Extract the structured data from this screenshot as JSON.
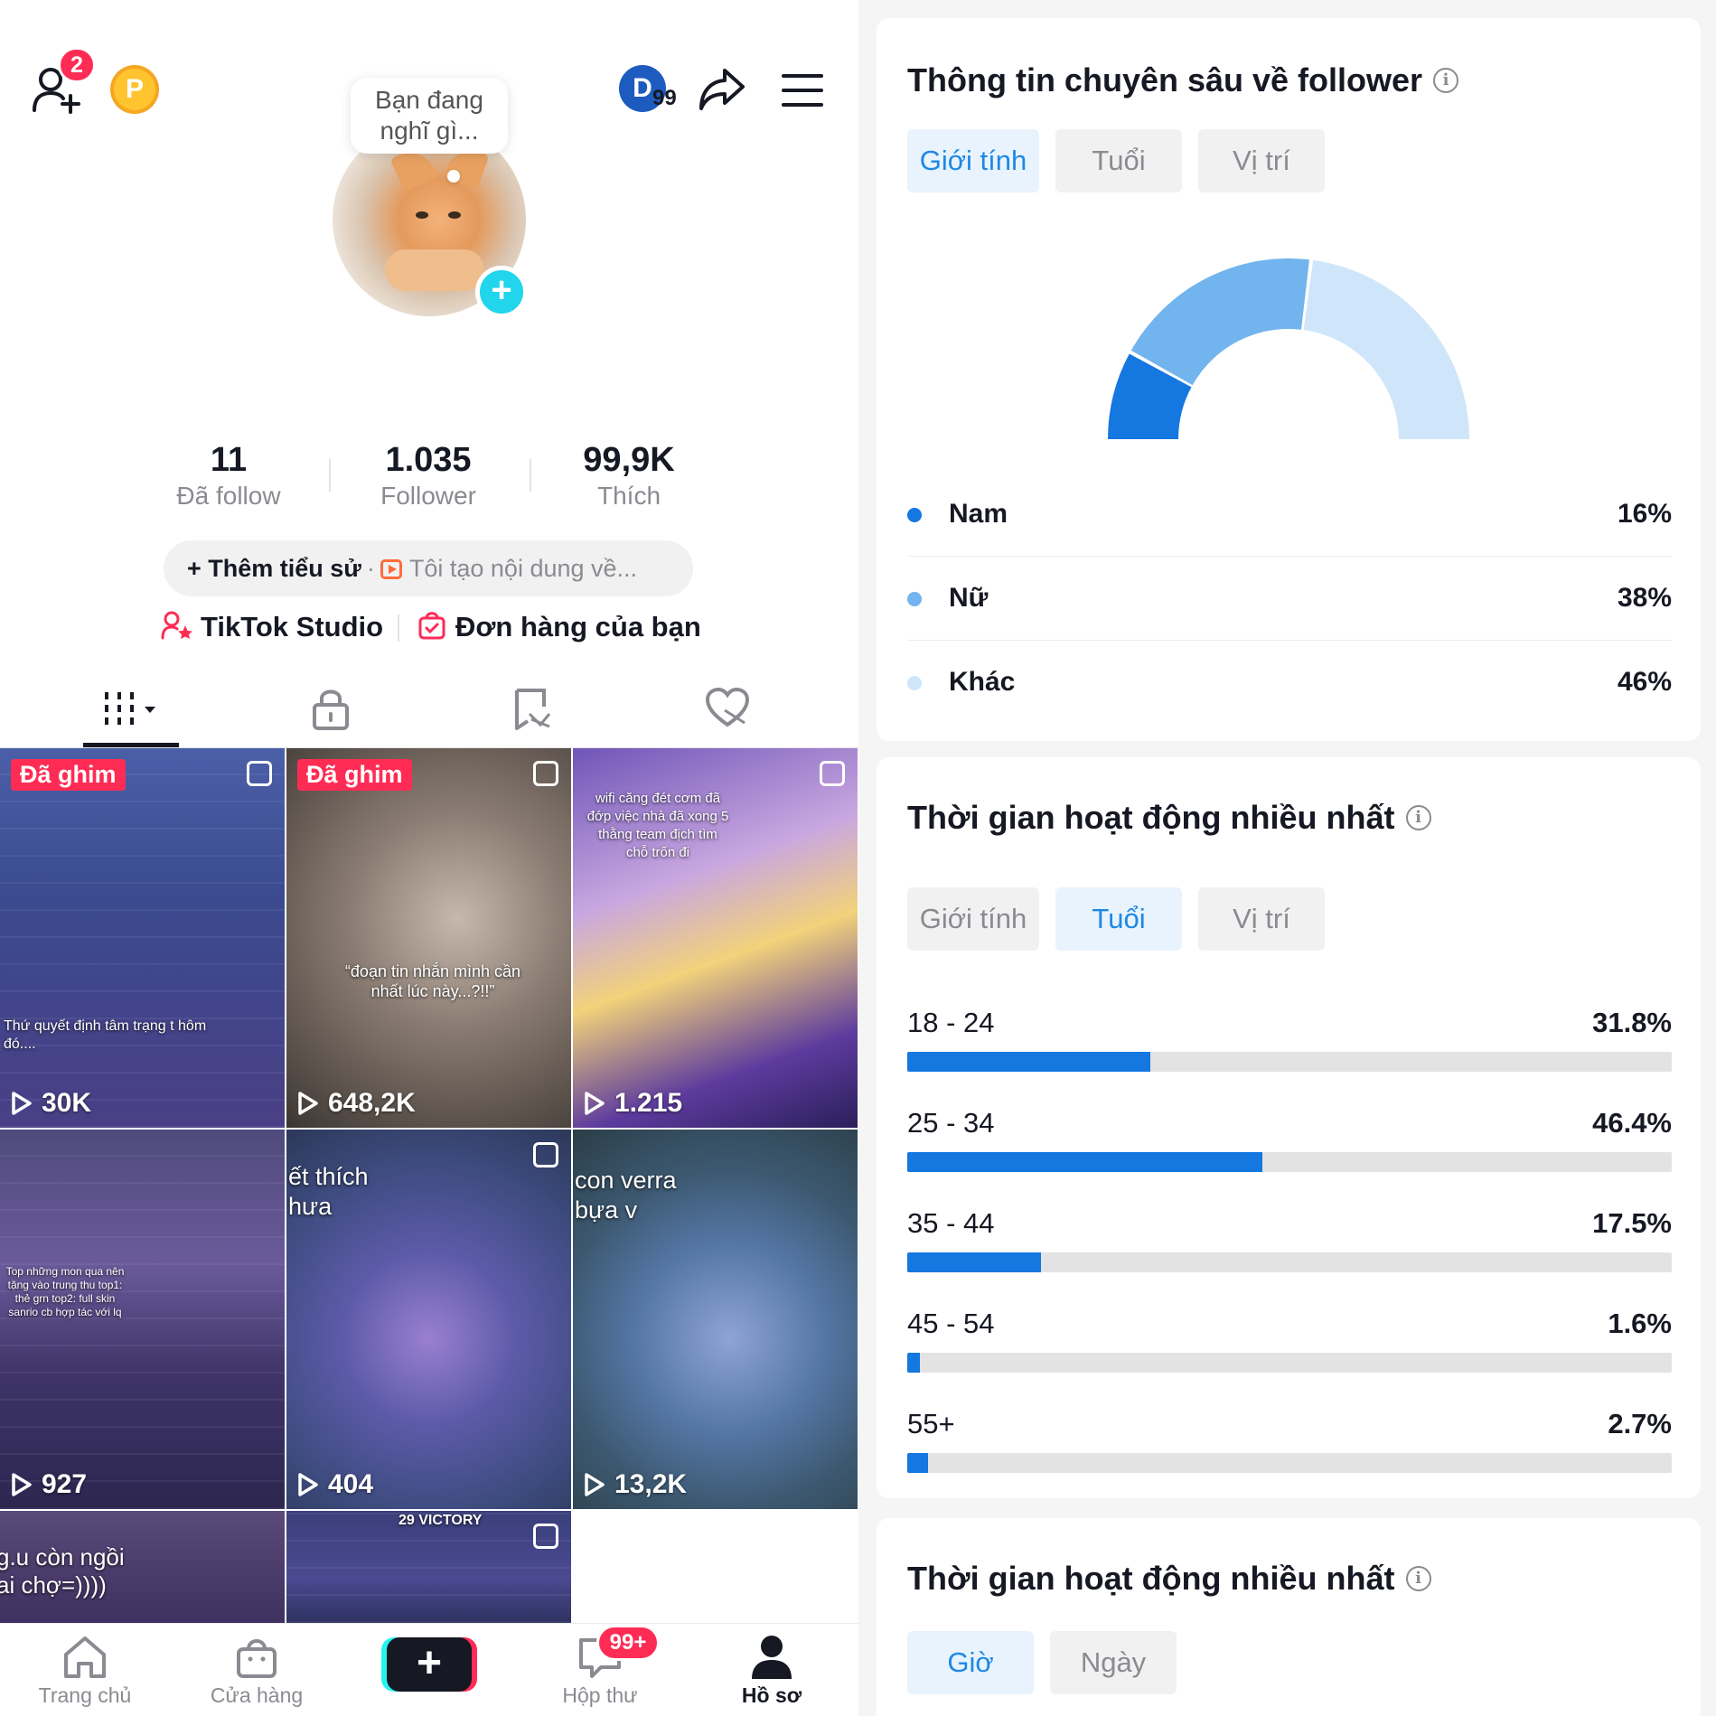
{
  "profile": {
    "friend_badge": "2",
    "coin_label": "P",
    "avatar_letter": "D",
    "avatar_count": "99",
    "bubble_text_1": "Bạn đang",
    "bubble_text_2": "nghĩ gì...",
    "stats": [
      {
        "value": "11",
        "label": "Đã follow"
      },
      {
        "value": "1.035",
        "label": "Follower"
      },
      {
        "value": "99,9K",
        "label": "Thích"
      }
    ],
    "bio_add": "Thêm tiểu sử",
    "bio_dot": "·",
    "bio_desc": "Tôi tạo nội dung về...",
    "studio_link": "TikTok Studio",
    "orders_link": "Đơn hàng của bạn"
  },
  "tiles": [
    {
      "pinned": "Đã ghim",
      "views": "30K",
      "caption": "Thứ quyết định tâm trạng t hôm đó...."
    },
    {
      "pinned": "Đã ghim",
      "views": "648,2K",
      "caption": "“đoạn tin nhắn mình cần nhất lúc này...?!!”"
    },
    {
      "views": "1.215",
      "caption": "wifi căng đét cơm đã đớp việc nhà đã xong 5 thằng team địch tìm chỗ trốn đi"
    },
    {
      "views": "927",
      "caption": "Top những mon qua nên tặng vào trung thu top1: thẻ grn top2: full skin sanrio cb hợp tác với lq"
    },
    {
      "views": "404",
      "caption": "ết thích hưa"
    },
    {
      "views": "13,2K",
      "caption": "con verra bựa v"
    },
    {
      "views": "",
      "caption": "g.u còn ngồi ai chợ=))))"
    },
    {
      "views": "",
      "caption": "29 VICTORY"
    }
  ],
  "nav": {
    "home": "Trang chủ",
    "shop": "Cửa hàng",
    "create": "+",
    "inbox": "Hộp thư",
    "inbox_badge": "99+",
    "profile": "Hồ sơ"
  },
  "insights": {
    "follower_card": {
      "title": "Thông tin chuyên sâu về follower",
      "info": "i",
      "tabs": [
        "Giới tính",
        "Tuổi",
        "Vị trí"
      ],
      "active_tab": 0,
      "gender": [
        {
          "name": "Nam",
          "pct": "16%",
          "value": 16,
          "color": "#1577e0"
        },
        {
          "name": "Nữ",
          "pct": "38%",
          "value": 38,
          "color": "#72b4ee"
        },
        {
          "name": "Khác",
          "pct": "46%",
          "value": 46,
          "color": "#cfe6fa"
        }
      ]
    },
    "activity_card": {
      "title": "Thời gian hoạt động nhiều nhất",
      "info": "i",
      "tabs": [
        "Giới tính",
        "Tuổi",
        "Vị trí"
      ],
      "active_tab": 1,
      "ages": [
        {
          "label": "18 - 24",
          "pct": "31.8%",
          "value": 31.8
        },
        {
          "label": "25 - 34",
          "pct": "46.4%",
          "value": 46.4
        },
        {
          "label": "35 - 44",
          "pct": "17.5%",
          "value": 17.5
        },
        {
          "label": "45 - 54",
          "pct": "1.6%",
          "value": 1.6
        },
        {
          "label": "55+",
          "pct": "2.7%",
          "value": 2.7
        }
      ]
    },
    "time_card": {
      "title": "Thời gian hoạt động nhiều nhất",
      "info": "i",
      "tabs": [
        "Giờ",
        "Ngày"
      ],
      "active_tab": 0
    }
  }
}
